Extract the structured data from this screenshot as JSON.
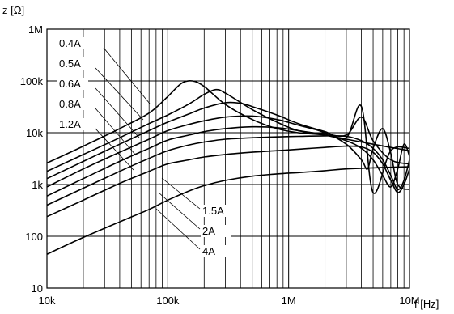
{
  "chart_data": {
    "type": "line",
    "title": "",
    "xlabel": "f [Hz]",
    "ylabel": "z [Ω]",
    "x_scale": "log",
    "y_scale": "log",
    "xlim": [
      10000,
      10000000
    ],
    "ylim": [
      10,
      1000000
    ],
    "grid": true,
    "x_ticks": [
      {
        "value": 10000,
        "label": "10k"
      },
      {
        "value": 100000,
        "label": "100k"
      },
      {
        "value": 1000000,
        "label": "1M"
      },
      {
        "value": 10000000,
        "label": "10M"
      }
    ],
    "y_ticks": [
      {
        "value": 10,
        "label": "10"
      },
      {
        "value": 100,
        "label": "100"
      },
      {
        "value": 1000,
        "label": "1k"
      },
      {
        "value": 10000,
        "label": "10k"
      },
      {
        "value": 100000,
        "label": "100k"
      },
      {
        "value": 1000000,
        "label": "1M"
      }
    ],
    "series": [
      {
        "name": "0.4A",
        "x": [
          10000,
          20000,
          40000,
          70000,
          100000,
          130000,
          160000,
          200000,
          300000,
          500000,
          800000,
          1200000,
          2000000,
          3000000,
          5000000,
          7000000,
          10000000
        ],
        "y": [
          2600,
          5500,
          12000,
          24000,
          50000,
          90000,
          100000,
          78000,
          35000,
          18000,
          12000,
          10000,
          9000,
          7500,
          6000,
          5200,
          4500
        ]
      },
      {
        "name": "0.5A",
        "x": [
          10000,
          20000,
          40000,
          70000,
          100000,
          150000,
          200000,
          250000,
          300000,
          500000,
          800000,
          1200000,
          2000000,
          3000000,
          4000000,
          5000000,
          7000000,
          10000000
        ],
        "y": [
          1800,
          3800,
          8000,
          15000,
          22000,
          36000,
          55000,
          68000,
          58000,
          28000,
          16000,
          11000,
          9500,
          9000,
          20000,
          7000,
          3000,
          2500
        ]
      },
      {
        "name": "0.6A",
        "x": [
          10000,
          20000,
          40000,
          70000,
          100000,
          150000,
          200000,
          300000,
          400000,
          500000,
          800000,
          1200000,
          2000000,
          3000000,
          4000000,
          5000000,
          7000000,
          10000000
        ],
        "y": [
          1300,
          2800,
          6000,
          11000,
          16000,
          23000,
          30000,
          38000,
          37000,
          32000,
          22000,
          15000,
          10500,
          8000,
          32000,
          700,
          4500,
          5000
        ]
      },
      {
        "name": "0.8A",
        "x": [
          10000,
          20000,
          40000,
          70000,
          100000,
          150000,
          200000,
          300000,
          500000,
          800000,
          1200000,
          2000000,
          3000000,
          4000000,
          4500000,
          5000000,
          6000000,
          7000000,
          8000000,
          10000000
        ],
        "y": [
          900,
          2000,
          4200,
          7500,
          11000,
          14500,
          17000,
          20000,
          21000,
          18000,
          14000,
          10000,
          6000,
          3000,
          2000,
          5000,
          12000,
          4000,
          1000,
          800
        ]
      },
      {
        "name": "1.2A",
        "x": [
          10000,
          20000,
          40000,
          70000,
          100000,
          150000,
          200000,
          300000,
          500000,
          800000,
          1200000,
          2000000,
          3000000,
          4000000,
          5000000,
          6000000,
          7000000,
          8000000,
          9000000,
          10000000
        ],
        "y": [
          600,
          1300,
          2800,
          5000,
          7200,
          9000,
          10500,
          12000,
          13000,
          12500,
          11000,
          9000,
          7000,
          5000,
          3000,
          1500,
          900,
          2000,
          6000,
          3500
        ]
      },
      {
        "name": "1.5A",
        "x": [
          10000,
          20000,
          40000,
          70000,
          100000,
          150000,
          200000,
          300000,
          500000,
          800000,
          1200000,
          2000000,
          3000000,
          4000000,
          5000000,
          6000000,
          7000000,
          8000000,
          9000000,
          10000000
        ],
        "y": [
          400,
          850,
          1800,
          3200,
          4500,
          5800,
          6600,
          7500,
          8000,
          8300,
          8500,
          8700,
          8500,
          7000,
          5000,
          3000,
          1500,
          800,
          1200,
          3000
        ]
      },
      {
        "name": "2A",
        "x": [
          10000,
          20000,
          40000,
          70000,
          100000,
          150000,
          200000,
          300000,
          500000,
          800000,
          1200000,
          2000000,
          3000000,
          4000000,
          5000000,
          6000000,
          7000000,
          8000000,
          9000000,
          10000000
        ],
        "y": [
          240,
          500,
          1050,
          1800,
          2500,
          3000,
          3400,
          3800,
          4200,
          4500,
          4800,
          5200,
          5500,
          5300,
          4200,
          2500,
          1200,
          700,
          1000,
          2000
        ]
      },
      {
        "name": "4A",
        "x": [
          10000,
          20000,
          40000,
          70000,
          100000,
          150000,
          200000,
          300000,
          500000,
          800000,
          1200000,
          2000000,
          3000000,
          5000000,
          7000000,
          10000000
        ],
        "y": [
          45,
          95,
          190,
          330,
          500,
          750,
          950,
          1200,
          1450,
          1600,
          1700,
          1850,
          2000,
          2100,
          2150,
          2200
        ]
      }
    ],
    "curve_labels": [
      "0.4A",
      "0.5A",
      "0.6A",
      "0.8A",
      "1.2A",
      "1.5A",
      "2A",
      "4A"
    ]
  }
}
